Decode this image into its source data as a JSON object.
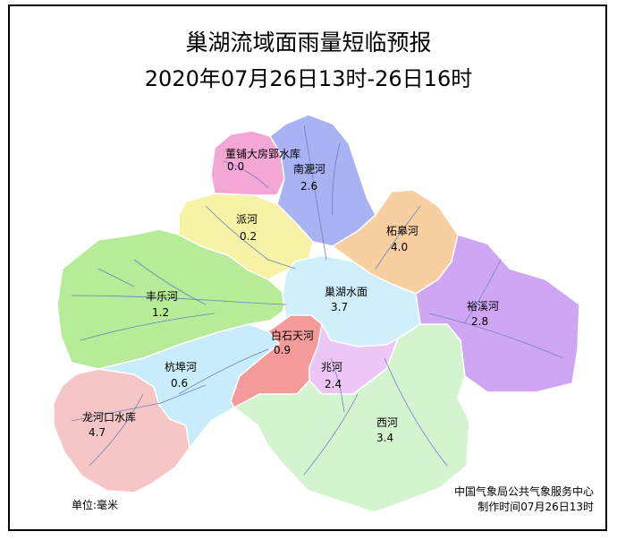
{
  "title": "巢湖流域面雨量短临预报",
  "subtitle": "2020年07月26日13时-26日16时",
  "regions": [
    {
      "name": "董铺大房郢水库",
      "value": "0.0",
      "color": "#f4a6d4"
    },
    {
      "name": "南淝河",
      "value": "2.6",
      "color": "#a9b3f4"
    },
    {
      "name": "派河",
      "value": "0.2",
      "color": "#f6f3a6"
    },
    {
      "name": "柘皋河",
      "value": "4.0",
      "color": "#f8cfa0"
    },
    {
      "name": "丰乐河",
      "value": "1.2",
      "color": "#b6ec98"
    },
    {
      "name": "巢湖水面",
      "value": "3.7",
      "color": "#cfeffa"
    },
    {
      "name": "裕溪河",
      "value": "2.8",
      "color": "#cfa6f4"
    },
    {
      "name": "白石天河",
      "value": "0.9",
      "color": "#f49a9a"
    },
    {
      "name": "杭埠河",
      "value": "0.6",
      "color": "#c8ecfa"
    },
    {
      "name": "兆河",
      "value": "2.4",
      "color": "#ecc6f6"
    },
    {
      "name": "龙河口水库",
      "value": "4.7",
      "color": "#f6c6c6"
    },
    {
      "name": "西河",
      "value": "3.4",
      "color": "#d4f4cf"
    }
  ],
  "unit": "单位:毫米",
  "source": "中国气象局公共气象服务中心",
  "made_time": "制作时间07月26日13时",
  "river_color": "#6f82b8",
  "border_color": "#ffffff"
}
